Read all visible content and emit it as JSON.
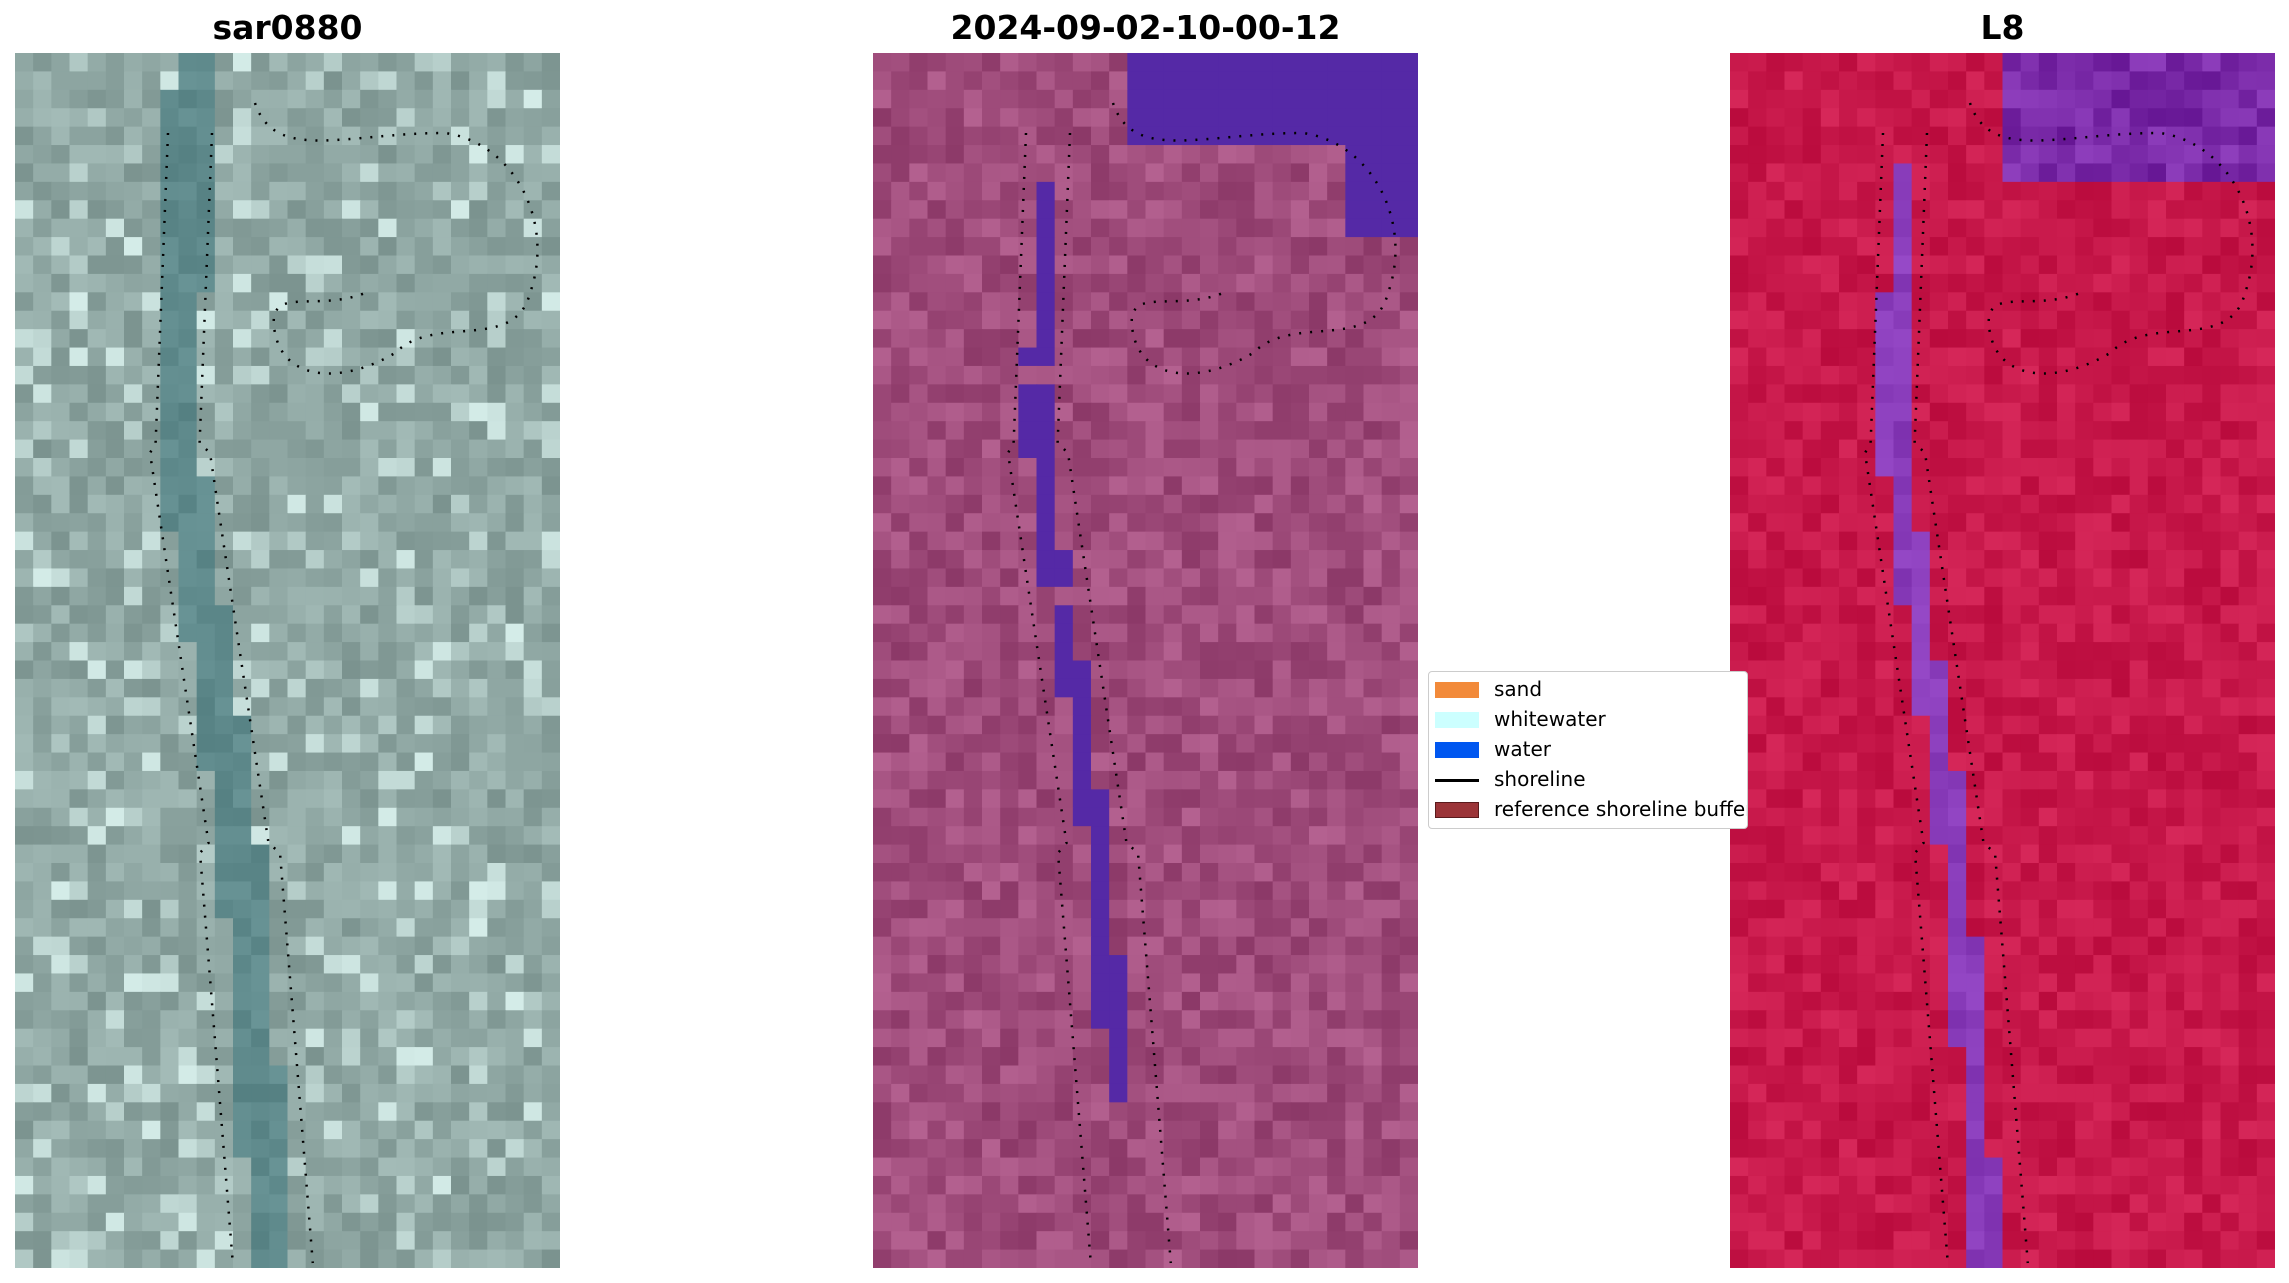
{
  "panels": [
    {
      "title": "sar0880",
      "mode": "rgb"
    },
    {
      "title": "2024-09-02-10-00-12",
      "mode": "classified"
    },
    {
      "title": "L8",
      "mode": "index"
    }
  ],
  "legend": [
    {
      "label": "sand",
      "kind": "patch",
      "color": "#f28a3a",
      "edge": "#f28a3a"
    },
    {
      "label": "whitewater",
      "kind": "patch",
      "color": "#ccffff",
      "edge": "#ccffff"
    },
    {
      "label": "water",
      "kind": "patch",
      "color": "#0057f0",
      "edge": "#0057f0"
    },
    {
      "label": "shoreline",
      "kind": "line",
      "color": "#000000"
    },
    {
      "label": "reference shoreline buffer",
      "kind": "patch",
      "color": "#9b3438",
      "edge": "#5a1a1c"
    }
  ],
  "colors": {
    "rgb_base": "#8fa7a3",
    "rgb_channel": "#5f8a8c",
    "classified_base": "#a04d7c",
    "classified_water": "#5529a6",
    "index_base": "#c8194b",
    "index_water": "#8a3dbb"
  }
}
